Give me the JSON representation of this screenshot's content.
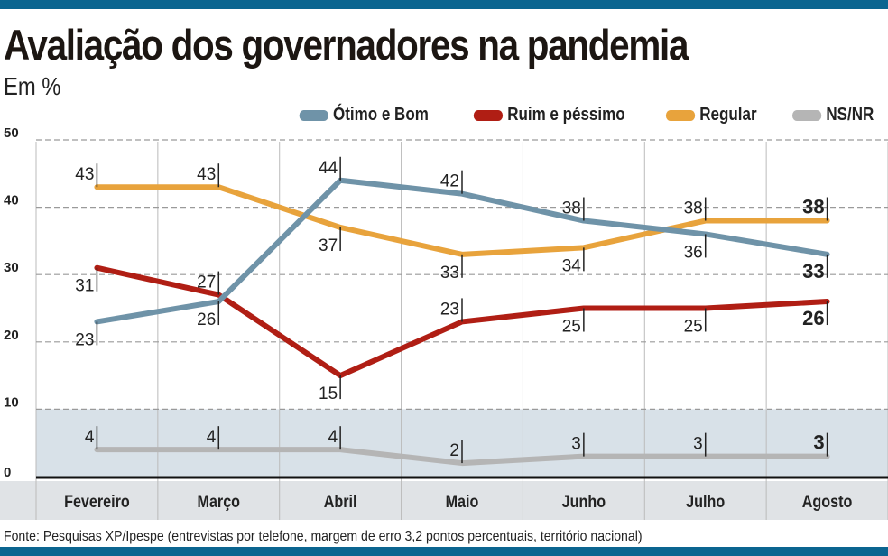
{
  "header": {
    "title": "Avaliação dos governadores na pandemia",
    "subtitle": "Em %"
  },
  "source": "Fonte: Pesquisas XP/Ipespe (entrevistas por telefone, margem de erro 3,2 pontos percentuais, território nacional)",
  "chart_data": {
    "type": "line",
    "title": "Avaliação dos governadores na pandemia",
    "ylabel": "Em %",
    "xlabel": "",
    "ylim": [
      0,
      50
    ],
    "yticks": [
      0,
      10,
      20,
      30,
      40,
      50
    ],
    "categories": [
      "Fevereiro",
      "Março",
      "Abril",
      "Maio",
      "Junho",
      "Julho",
      "Agosto"
    ],
    "legend_position": "top-right",
    "series": [
      {
        "name": "Ótimo e Bom",
        "color": "#6f93a8",
        "values": [
          23,
          26,
          44,
          42,
          38,
          36,
          33
        ]
      },
      {
        "name": "Ruim e péssimo",
        "color": "#b01e14",
        "values": [
          31,
          27,
          15,
          23,
          25,
          25,
          26
        ]
      },
      {
        "name": "Regular",
        "color": "#e8a33c",
        "values": [
          43,
          43,
          37,
          33,
          34,
          38,
          38
        ]
      },
      {
        "name": "NS/NR",
        "color": "#b5b5b5",
        "values": [
          4,
          4,
          4,
          2,
          3,
          3,
          3
        ]
      }
    ]
  }
}
